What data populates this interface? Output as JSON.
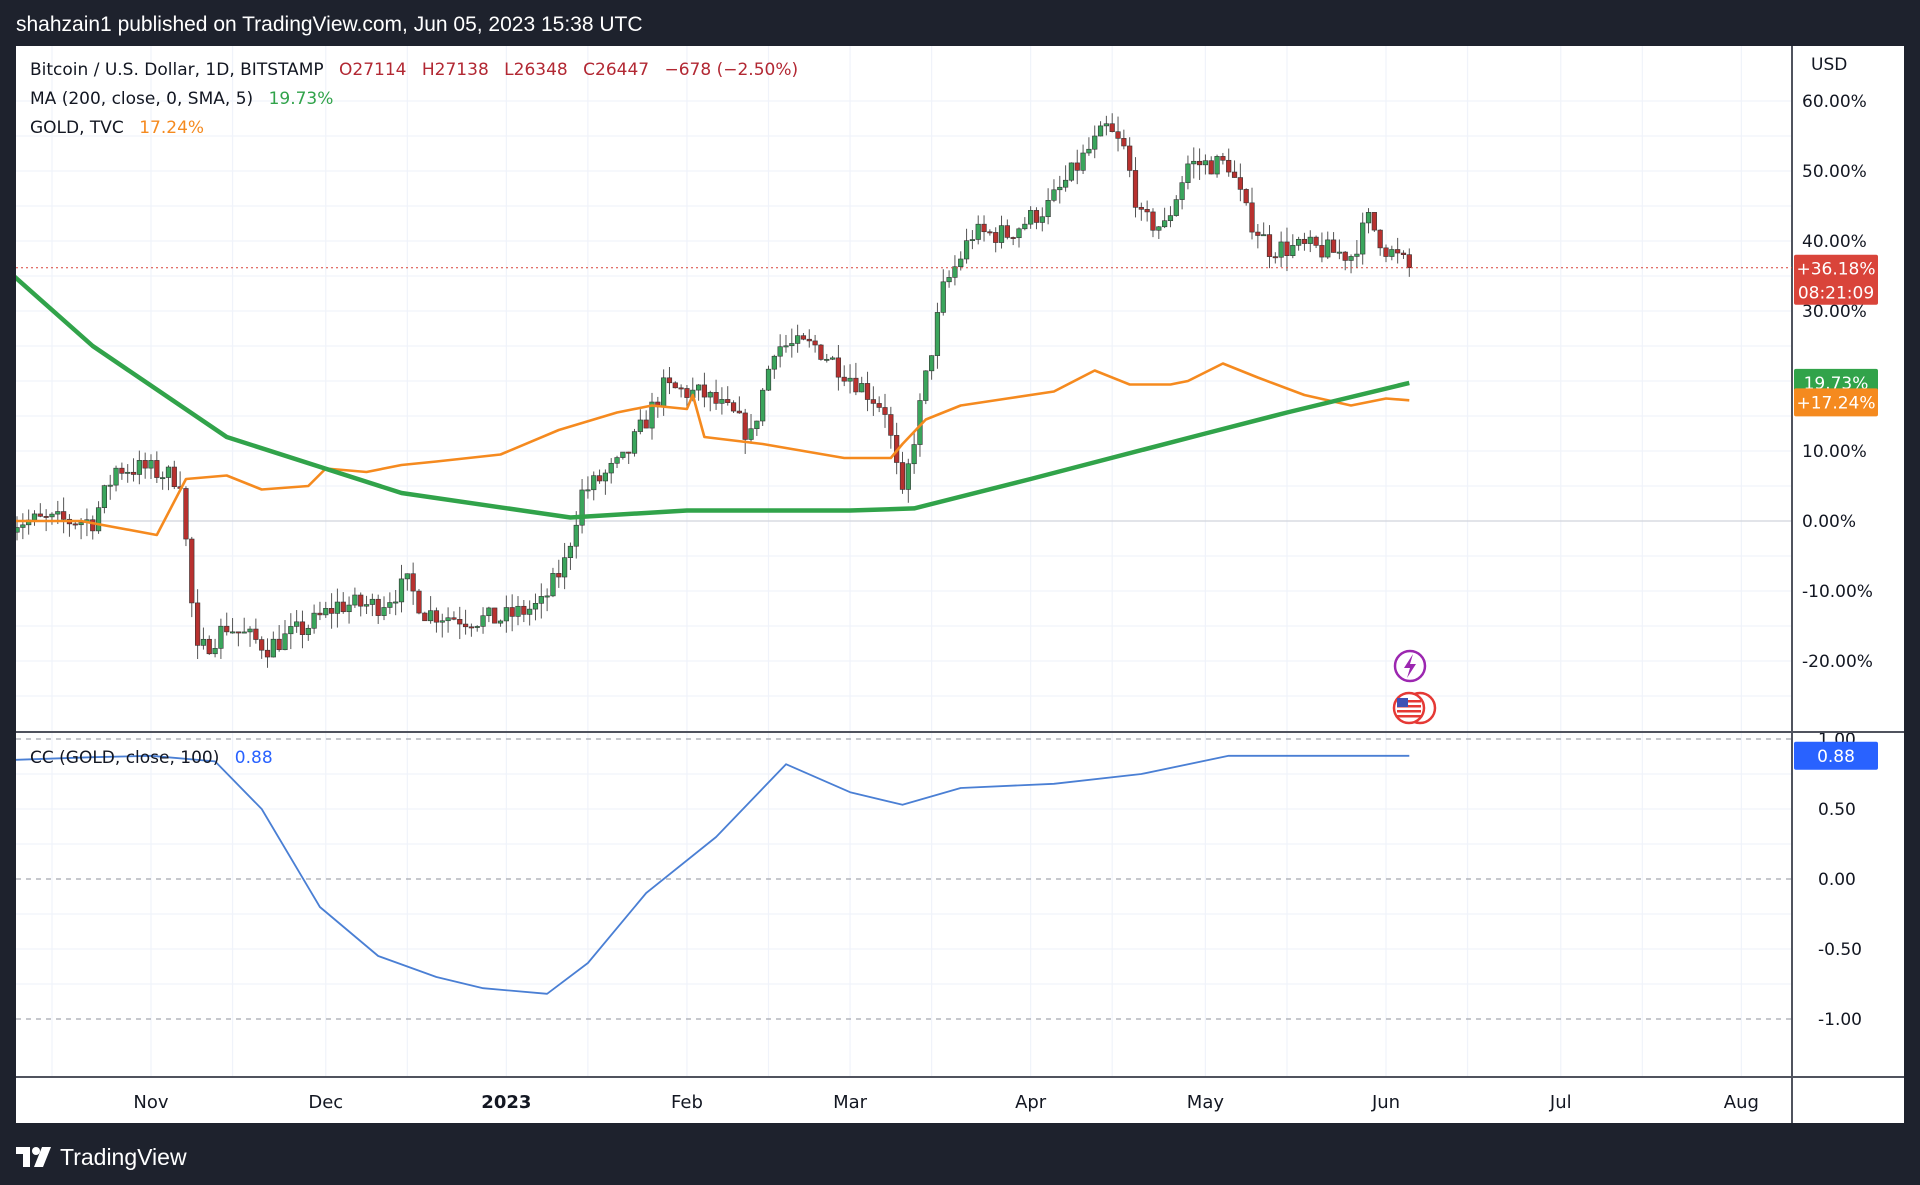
{
  "header": {
    "publish_text": "shahzain1 published on TradingView.com, Jun 05, 2023 15:38 UTC"
  },
  "footer": {
    "brand": "TradingView"
  },
  "legend": {
    "symbol": "Bitcoin / U.S. Dollar, 1D, BITSTAMP",
    "open": "O27114",
    "high": "H27138",
    "low": "L26348",
    "close": "C26447",
    "change": "−678 (−2.50%)",
    "ma_label": "MA (200, close, 0, SMA, 5)",
    "ma_value": "19.73%",
    "gold_label": "GOLD, TVC",
    "gold_value": "17.24%",
    "cc_label": "CC (GOLD, close, 100)",
    "cc_value": "0.88"
  },
  "colors": {
    "up": "#26a69a",
    "down": "#ef5350",
    "candle_up": "#3aa55c",
    "candle_down": "#b8312f",
    "ma": "#31a34a",
    "gold": "#f58a1f",
    "cc": "#4a7fd4",
    "price_tag": "#d9443a",
    "cc_tag": "#2962ff"
  },
  "chart_data": [
    {
      "type": "candlestick",
      "title": "Bitcoin / U.S. Dollar, 1D, BITSTAMP",
      "y_unit": "%",
      "ylim": [
        -27,
        64
      ],
      "y_ticks": [
        "60.00%",
        "50.00%",
        "40.00%",
        "30.00%",
        "20.00%",
        "10.00%",
        "0.00%",
        "-10.00%",
        "-20.00%"
      ],
      "y_axis_label": "USD",
      "x_ticks": [
        "Nov",
        "Dec",
        "2023",
        "Feb",
        "Mar",
        "Apr",
        "May",
        "Jun",
        "Jul",
        "Aug"
      ],
      "bitcoin_pct_keypoints": [
        [
          "Oct 8",
          0
        ],
        [
          "Oct 15",
          0
        ],
        [
          "Oct 22",
          0
        ],
        [
          "Oct 26",
          7.5
        ],
        [
          "Oct 31",
          7.5
        ],
        [
          "Nov 6",
          6
        ],
        [
          "Nov 8",
          -12
        ],
        [
          "Nov 9",
          -19
        ],
        [
          "Nov 14",
          -15
        ],
        [
          "Nov 21",
          -18
        ],
        [
          "Nov 28",
          -15
        ],
        [
          "Dec 3",
          -12
        ],
        [
          "Dec 10",
          -12
        ],
        [
          "Dec 15",
          -9
        ],
        [
          "Dec 18",
          -13
        ],
        [
          "Dec 25",
          -14
        ],
        [
          "Dec 31",
          -14
        ],
        [
          "Jan 7",
          -12
        ],
        [
          "Jan 11",
          -6
        ],
        [
          "Jan 14",
          4
        ],
        [
          "Jan 21",
          8.5
        ],
        [
          "Jan 28",
          19
        ],
        [
          "Feb 4",
          18
        ],
        [
          "Feb 9",
          15
        ],
        [
          "Feb 12",
          12
        ],
        [
          "Feb 16",
          25
        ],
        [
          "Feb 23",
          25
        ],
        [
          "Mar 2",
          20
        ],
        [
          "Mar 7",
          16
        ],
        [
          "Mar 10",
          3
        ],
        [
          "Mar 12",
          12
        ],
        [
          "Mar 17",
          33
        ],
        [
          "Mar 22",
          41
        ],
        [
          "Mar 28",
          41
        ],
        [
          "Apr 4",
          45
        ],
        [
          "Apr 11",
          53
        ],
        [
          "Apr 14",
          56
        ],
        [
          "Apr 17",
          53
        ],
        [
          "Apr 20",
          43
        ],
        [
          "Apr 24",
          42
        ],
        [
          "Apr 28",
          51
        ],
        [
          "May 5",
          51
        ],
        [
          "May 8",
          44
        ],
        [
          "May 12",
          39
        ],
        [
          "May 19",
          39
        ],
        [
          "May 26",
          38
        ],
        [
          "May 29",
          43
        ],
        [
          "Jun 1",
          39
        ],
        [
          "Jun 5",
          36.18
        ]
      ],
      "last_value_label": "+36.18%",
      "countdown": "08:21:09",
      "series": [
        {
          "name": "MA (200, close, 0, SMA, 5)",
          "last_value": 19.73,
          "last_label": "19.73%",
          "points": [
            [
              "Oct 1",
              40.5
            ],
            [
              "Oct 22",
              25
            ],
            [
              "Nov 14",
              12
            ],
            [
              "Dec 14",
              4
            ],
            [
              "Jan 12",
              0.5
            ],
            [
              "Feb 1",
              1.5
            ],
            [
              "Mar 1",
              1.5
            ],
            [
              "Mar 12",
              1.8
            ],
            [
              "Apr 1",
              6
            ],
            [
              "May 1",
              12.5
            ],
            [
              "May 15",
              15.5
            ],
            [
              "Jun 5",
              19.73
            ]
          ]
        },
        {
          "name": "GOLD, TVC",
          "last_value": 17.24,
          "last_label": "+17.24%",
          "points": [
            [
              "Oct 1",
              0
            ],
            [
              "Oct 20",
              0
            ],
            [
              "Nov 2",
              -2
            ],
            [
              "Nov 7",
              6
            ],
            [
              "Nov 14",
              6.5
            ],
            [
              "Nov 20",
              4.5
            ],
            [
              "Nov 28",
              5
            ],
            [
              "Dec 1",
              7.5
            ],
            [
              "Dec 8",
              7
            ],
            [
              "Dec 14",
              8
            ],
            [
              "Dec 20",
              8.5
            ],
            [
              "Dec 31",
              9.5
            ],
            [
              "Jan 10",
              13
            ],
            [
              "Jan 20",
              15.5
            ],
            [
              "Jan 26",
              16.5
            ],
            [
              "Feb 1",
              16
            ],
            [
              "Feb 2",
              18
            ],
            [
              "Feb 4",
              12
            ],
            [
              "Feb 14",
              11
            ],
            [
              "Feb 28",
              9
            ],
            [
              "Mar 8",
              9
            ],
            [
              "Mar 10",
              11
            ],
            [
              "Mar 14",
              14.5
            ],
            [
              "Mar 20",
              16.5
            ],
            [
              "Mar 28",
              17.5
            ],
            [
              "Apr 5",
              18.5
            ],
            [
              "Apr 12",
              21.5
            ],
            [
              "Apr 18",
              19.5
            ],
            [
              "Apr 25",
              19.5
            ],
            [
              "Apr 28",
              20
            ],
            [
              "May 4",
              22.5
            ],
            [
              "May 10",
              20.5
            ],
            [
              "May 18",
              18
            ],
            [
              "May 26",
              16.5
            ],
            [
              "Jun 1",
              17.5
            ],
            [
              "Jun 5",
              17.24
            ]
          ]
        }
      ]
    },
    {
      "type": "line",
      "title": "CC (GOLD, close, 100)",
      "ylim": [
        -1.1,
        1.1
      ],
      "y_ticks": [
        "1.00",
        "0.50",
        "0.00",
        "-0.50",
        "-1.00"
      ],
      "last_value_label": "0.88",
      "series": [
        {
          "name": "CC (GOLD, close, 100)",
          "points": [
            [
              "Oct 1",
              0.72
            ],
            [
              "Oct 8",
              0.85
            ],
            [
              "Oct 22",
              0.87
            ],
            [
              "Nov 1",
              0.88
            ],
            [
              "Nov 12",
              0.84
            ],
            [
              "Nov 20",
              0.5
            ],
            [
              "Nov 30",
              -0.2
            ],
            [
              "Dec 10",
              -0.55
            ],
            [
              "Dec 20",
              -0.7
            ],
            [
              "Dec 28",
              -0.78
            ],
            [
              "Jan 8",
              -0.82
            ],
            [
              "Jan 15",
              -0.6
            ],
            [
              "Jan 25",
              -0.1
            ],
            [
              "Feb 6",
              0.3
            ],
            [
              "Feb 18",
              0.82
            ],
            [
              "Mar 1",
              0.62
            ],
            [
              "Mar 10",
              0.53
            ],
            [
              "Mar 20",
              0.65
            ],
            [
              "Apr 5",
              0.68
            ],
            [
              "Apr 20",
              0.75
            ],
            [
              "May 5",
              0.88
            ],
            [
              "May 20",
              0.88
            ],
            [
              "Jun 5",
              0.88
            ]
          ]
        }
      ]
    }
  ]
}
